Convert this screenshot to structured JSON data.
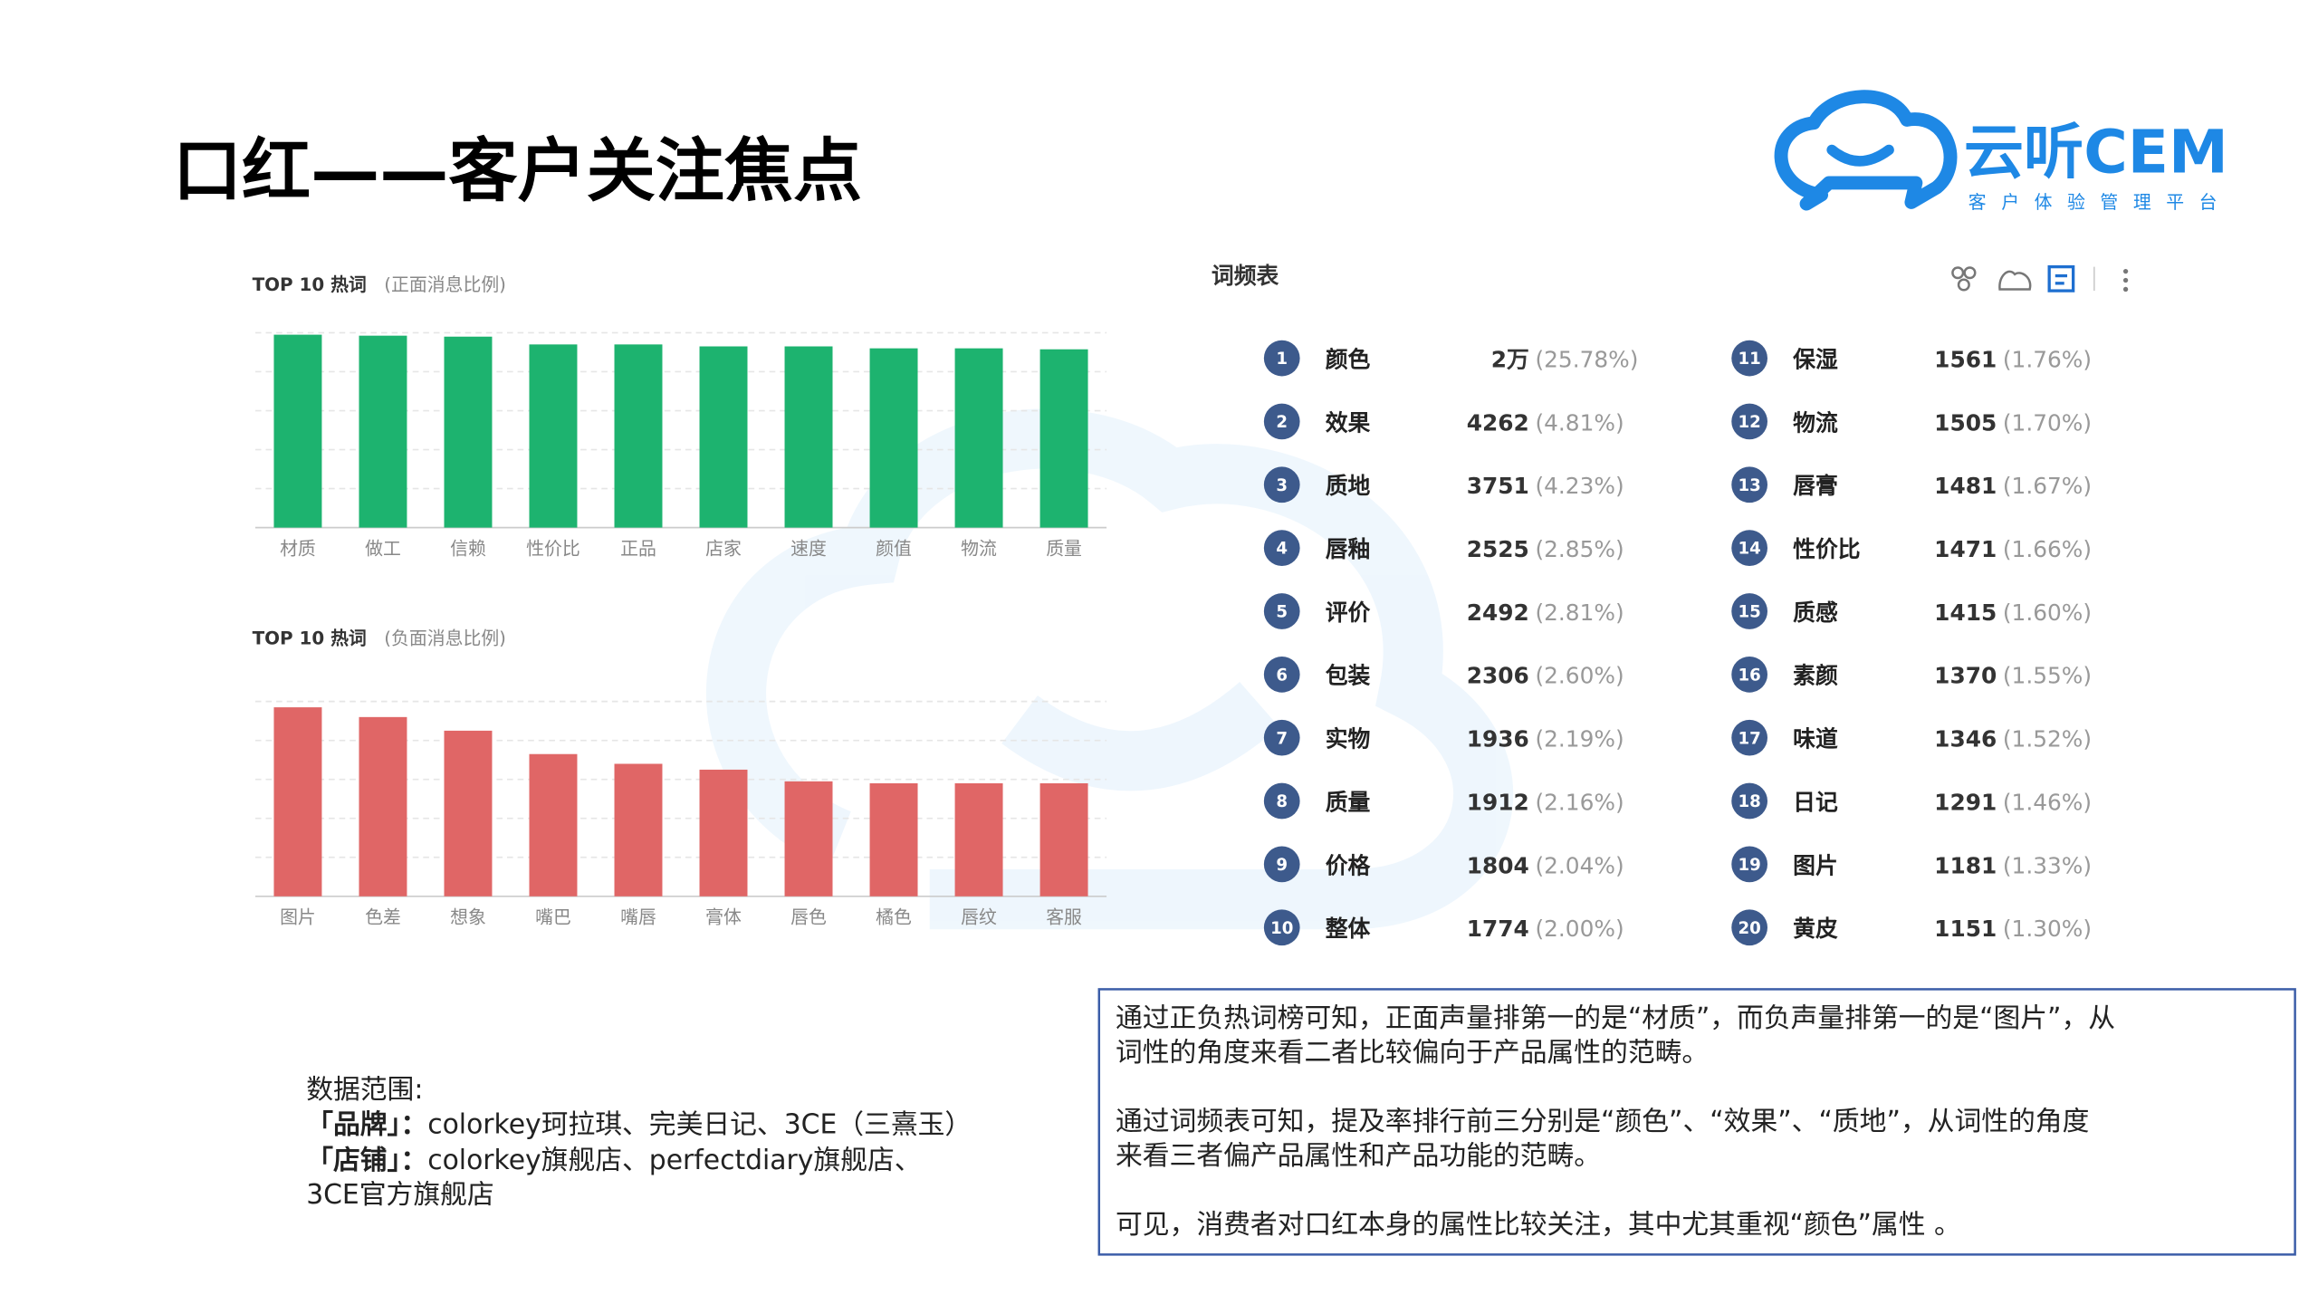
{
  "header": {
    "title": "口红——客户关注焦点",
    "logo_name": "云听CEM",
    "logo_tagline": "客户体验管理平台"
  },
  "chart_data": [
    {
      "type": "bar",
      "title": "TOP 10 热词",
      "subtitle": "(正面消息比例)",
      "categories": [
        "材质",
        "做工",
        "信赖",
        "性价比",
        "正品",
        "店家",
        "速度",
        "颜值",
        "物流",
        "质量"
      ],
      "values": [
        99,
        98.5,
        98,
        94,
        94,
        93,
        93,
        92,
        92,
        91.5
      ],
      "color": "#1db36f",
      "ylim": [
        0,
        100
      ],
      "grid": true
    },
    {
      "type": "bar",
      "title": "TOP 10 热词",
      "subtitle": "(负面消息比例)",
      "categories": [
        "图片",
        "色差",
        "想象",
        "嘴巴",
        "嘴唇",
        "膏体",
        "唇色",
        "橘色",
        "唇纹",
        "客服"
      ],
      "values": [
        97,
        92,
        85,
        73,
        68,
        65,
        59,
        58,
        58,
        58
      ],
      "color": "#e06666",
      "ylim": [
        0,
        100
      ],
      "grid": true
    }
  ],
  "table": {
    "title": "词频表",
    "rows": [
      {
        "rank": 1,
        "word": "颜色",
        "count": "2万",
        "pct": "(25.78%)"
      },
      {
        "rank": 2,
        "word": "效果",
        "count": "4262",
        "pct": "(4.81%)"
      },
      {
        "rank": 3,
        "word": "质地",
        "count": "3751",
        "pct": "(4.23%)"
      },
      {
        "rank": 4,
        "word": "唇釉",
        "count": "2525",
        "pct": "(2.85%)"
      },
      {
        "rank": 5,
        "word": "评价",
        "count": "2492",
        "pct": "(2.81%)"
      },
      {
        "rank": 6,
        "word": "包装",
        "count": "2306",
        "pct": "(2.60%)"
      },
      {
        "rank": 7,
        "word": "实物",
        "count": "1936",
        "pct": "(2.19%)"
      },
      {
        "rank": 8,
        "word": "质量",
        "count": "1912",
        "pct": "(2.16%)"
      },
      {
        "rank": 9,
        "word": "价格",
        "count": "1804",
        "pct": "(2.04%)"
      },
      {
        "rank": 10,
        "word": "整体",
        "count": "1774",
        "pct": "(2.00%)"
      },
      {
        "rank": 11,
        "word": "保湿",
        "count": "1561",
        "pct": "(1.76%)"
      },
      {
        "rank": 12,
        "word": "物流",
        "count": "1505",
        "pct": "(1.70%)"
      },
      {
        "rank": 13,
        "word": "唇膏",
        "count": "1481",
        "pct": "(1.67%)"
      },
      {
        "rank": 14,
        "word": "性价比",
        "count": "1471",
        "pct": "(1.66%)"
      },
      {
        "rank": 15,
        "word": "质感",
        "count": "1415",
        "pct": "(1.60%)"
      },
      {
        "rank": 16,
        "word": "素颜",
        "count": "1370",
        "pct": "(1.55%)"
      },
      {
        "rank": 17,
        "word": "味道",
        "count": "1346",
        "pct": "(1.52%)"
      },
      {
        "rank": 18,
        "word": "日记",
        "count": "1291",
        "pct": "(1.46%)"
      },
      {
        "rank": 19,
        "word": "图片",
        "count": "1181",
        "pct": "(1.33%)"
      },
      {
        "rank": 20,
        "word": "黄皮",
        "count": "1151",
        "pct": "(1.30%)"
      }
    ]
  },
  "data_scope": {
    "label": "数据范围:",
    "lines": [
      {
        "key": "「品牌」：",
        "text": "colorkey珂拉琪、完美日记、3CE（三熹玉）"
      },
      {
        "key": "「店铺」：",
        "text": "colorkey旗舰店、perfectdiary旗舰店、"
      }
    ],
    "last_line": "3CE官方旗舰店"
  },
  "summary": {
    "paragraphs": [
      [
        "通过正负热词榜可知，正面声量排第一的是“材质”，而负声量排第一的是“图片”，从",
        "词性的角度来看二者比较偏向于产品属性的范畴。"
      ],
      [
        "通过词频表可知，提及率排行前三分别是“颜色”、“效果”、“质地”，从词性的角度",
        "来看三者偏产品属性和产品功能的范畴。"
      ],
      [
        "可见，消费者对口红本身的属性比较关注，其中尤其重视“颜色”属性 。"
      ]
    ]
  }
}
